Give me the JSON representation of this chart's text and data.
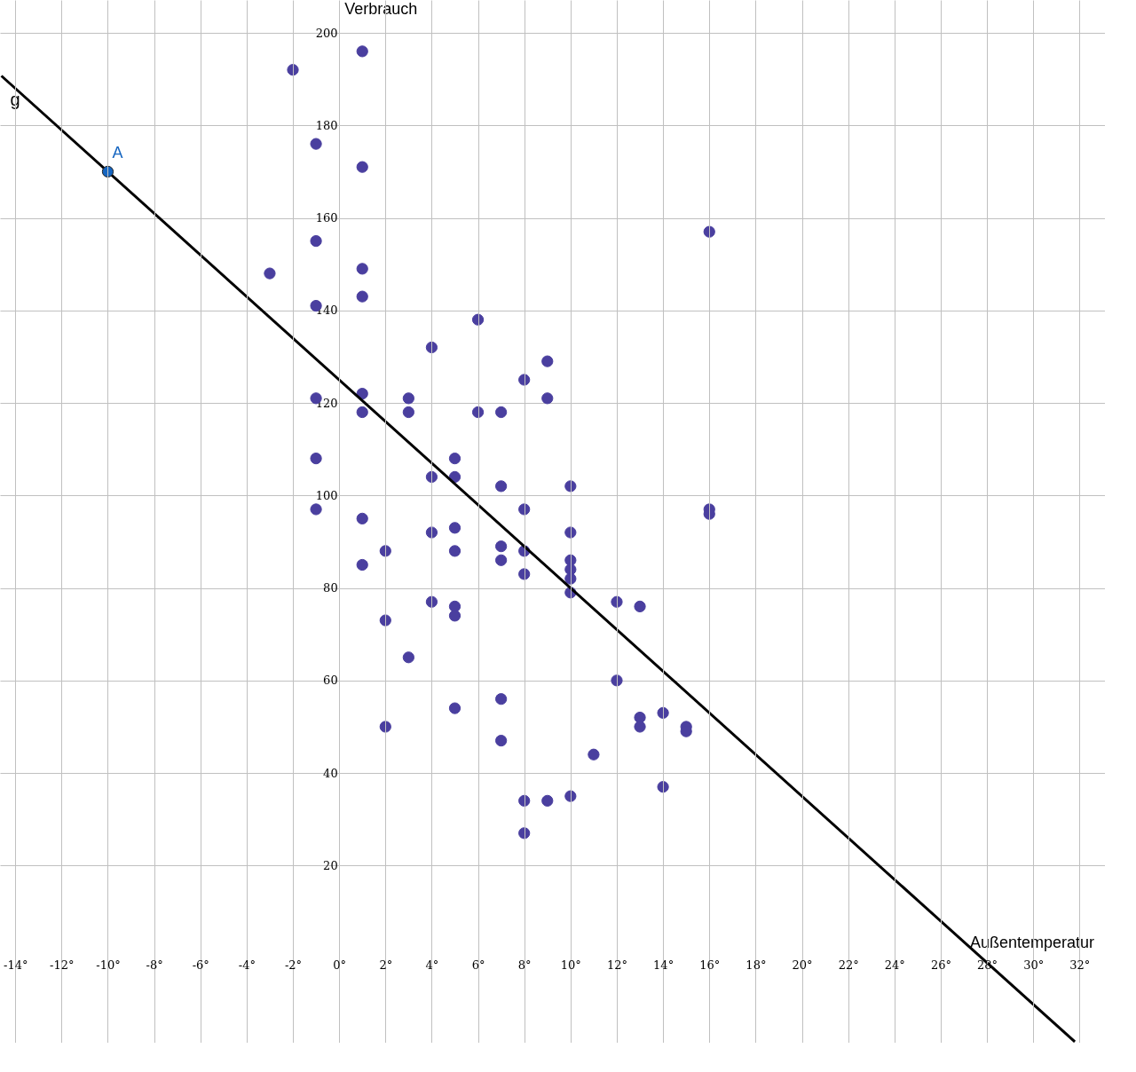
{
  "chart_data": {
    "type": "scatter",
    "xlabel": "Außentemperatur",
    "ylabel": "Verbrauch",
    "xlim": [
      -14.66,
      33.1
    ],
    "ylim": [
      -18.3,
      207.1
    ],
    "xticks": [
      {
        "value": -14,
        "label": "-14°"
      },
      {
        "value": -12,
        "label": "-12°"
      },
      {
        "value": -10,
        "label": "-10°"
      },
      {
        "value": -8,
        "label": "-8°"
      },
      {
        "value": -6,
        "label": "-6°"
      },
      {
        "value": -4,
        "label": "-4°"
      },
      {
        "value": -2,
        "label": "-2°"
      },
      {
        "value": 0,
        "label": "0°"
      },
      {
        "value": 2,
        "label": "2°"
      },
      {
        "value": 4,
        "label": "4°"
      },
      {
        "value": 6,
        "label": "6°"
      },
      {
        "value": 8,
        "label": "8°"
      },
      {
        "value": 10,
        "label": "10°"
      },
      {
        "value": 12,
        "label": "12°"
      },
      {
        "value": 14,
        "label": "14°"
      },
      {
        "value": 16,
        "label": "16°"
      },
      {
        "value": 18,
        "label": "18°"
      },
      {
        "value": 20,
        "label": "20°"
      },
      {
        "value": 22,
        "label": "22°"
      },
      {
        "value": 24,
        "label": "24°"
      },
      {
        "value": 26,
        "label": "26°"
      },
      {
        "value": 28,
        "label": "28°"
      },
      {
        "value": 30,
        "label": "30°"
      },
      {
        "value": 32,
        "label": "32°"
      }
    ],
    "yticks": [
      20,
      40,
      60,
      80,
      100,
      120,
      140,
      160,
      180,
      200
    ],
    "grid": true,
    "series": [
      {
        "marker": "circle",
        "color": "#4a3f9f",
        "x": [
          -2,
          1,
          -1,
          1,
          -1,
          16,
          -3,
          1,
          1,
          -1,
          6,
          4,
          9,
          8,
          1,
          -1,
          3,
          9,
          1,
          3,
          6,
          7,
          -1,
          5,
          4,
          5,
          7,
          10,
          -1,
          8,
          16,
          16,
          1,
          5,
          4,
          10,
          7,
          2,
          5,
          8,
          7,
          10,
          1,
          10,
          8,
          10,
          10,
          4,
          12,
          5,
          13,
          5,
          2,
          3,
          12,
          7,
          5,
          14,
          13,
          2,
          13,
          15,
          15,
          7,
          11,
          14,
          10,
          8,
          9,
          8
        ],
        "values": [
          192,
          196,
          176,
          171,
          155,
          157,
          148,
          149,
          143,
          141,
          138,
          132,
          129,
          125,
          122,
          121,
          121,
          121,
          118,
          118,
          118,
          118,
          108,
          108,
          104,
          104,
          102,
          102,
          97,
          97,
          97,
          96,
          95,
          93,
          92,
          92,
          89,
          88,
          88,
          88,
          86,
          86,
          85,
          84,
          83,
          82,
          79,
          77,
          77,
          76,
          76,
          74,
          73,
          65,
          60,
          56,
          54,
          53,
          52,
          50,
          50,
          50,
          49,
          47,
          44,
          37,
          35,
          34,
          34,
          27
        ]
      },
      {
        "type": "line",
        "name": "g",
        "color": "#000000",
        "line_style": "solid",
        "marker": "none",
        "x": [
          -14.6,
          31.8
        ],
        "values": [
          190.7,
          -18.1
        ]
      },
      {
        "type": "scatter",
        "marker": "circle",
        "name": "A",
        "color": "#1565c0",
        "x": [
          -10
        ],
        "values": [
          170
        ]
      }
    ]
  }
}
